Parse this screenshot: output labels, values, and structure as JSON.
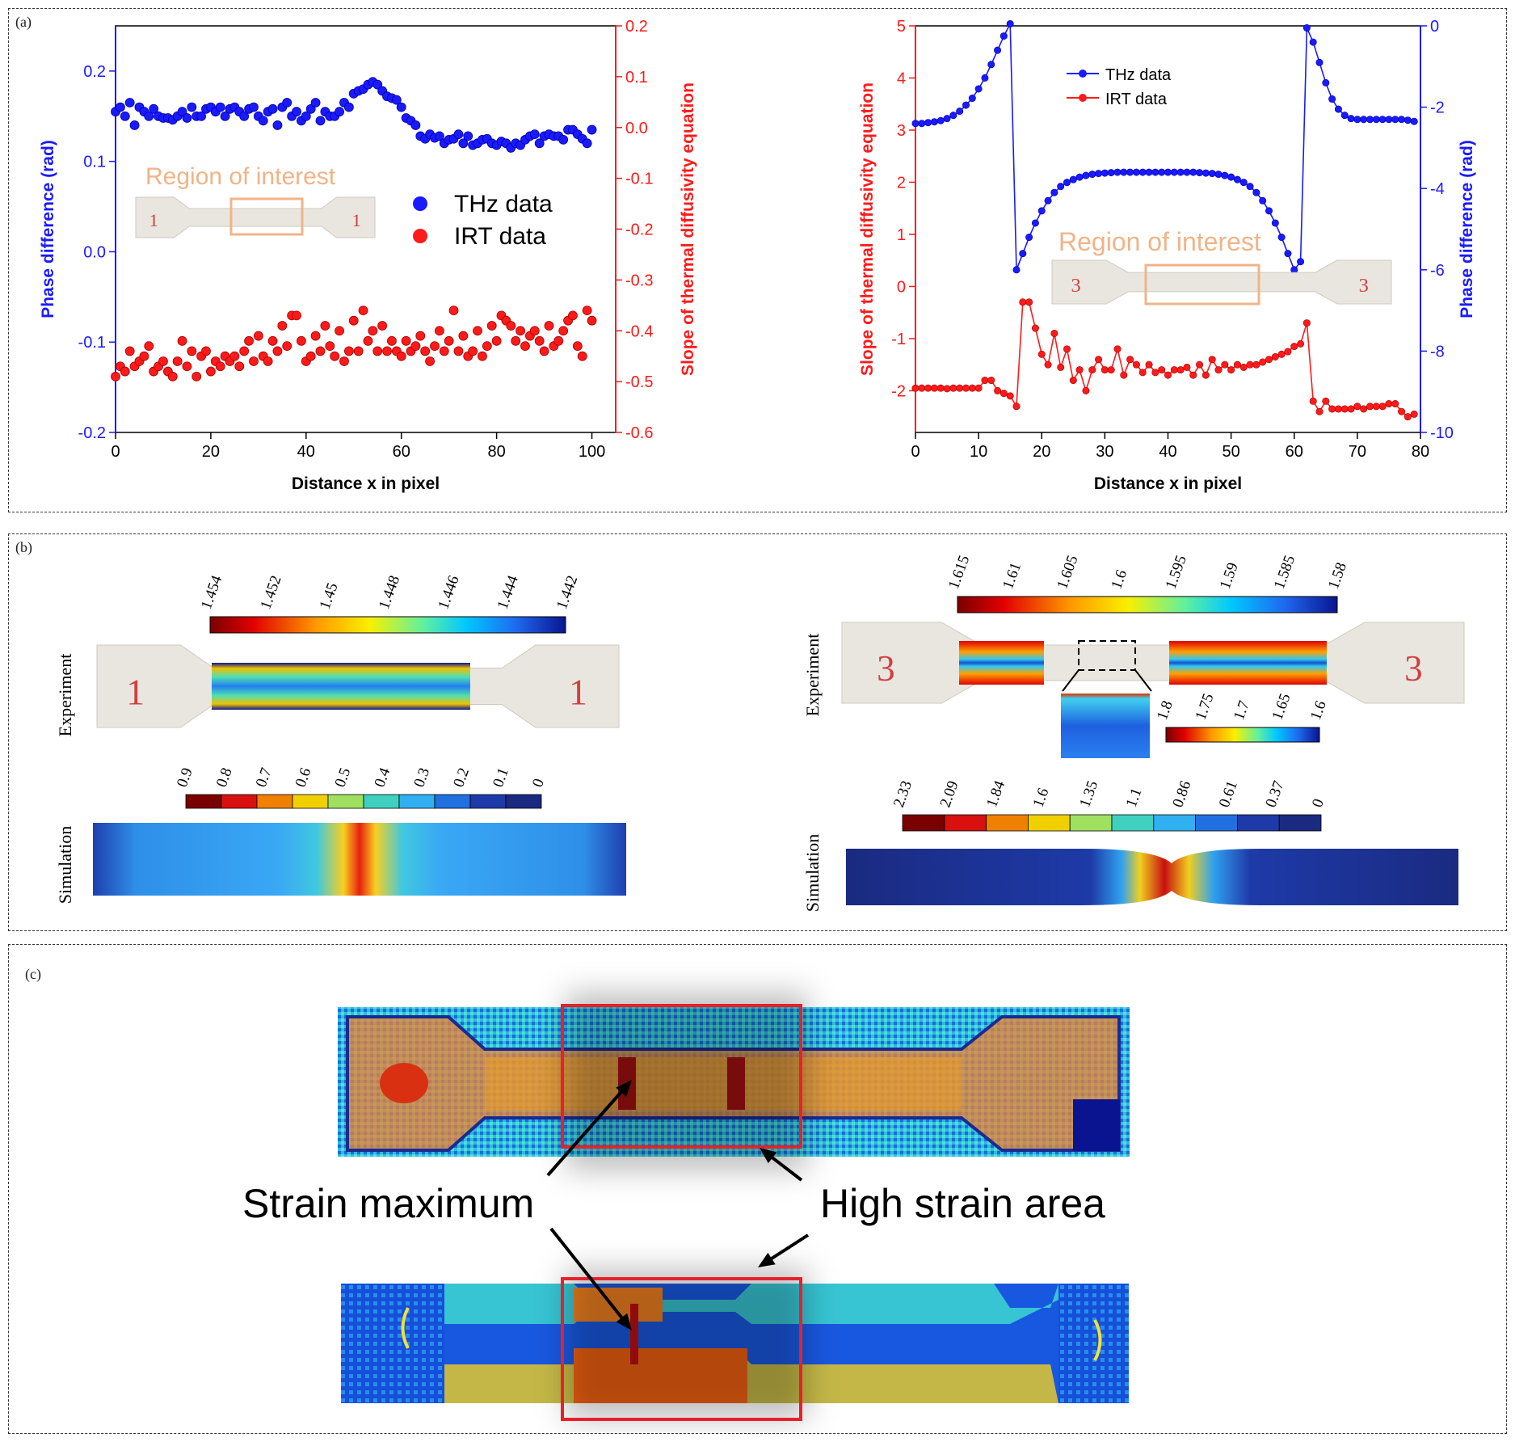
{
  "panel_labels": {
    "a": "(a)",
    "b": "(b)",
    "c": "(c)"
  },
  "colors": {
    "thz": "#1a1aff",
    "irt": "#ff1a1a",
    "roi": "#f0b488",
    "highlight": "#e8202a"
  },
  "chart_data": [
    {
      "type": "scatter",
      "xlabel": "Distance x in pixel",
      "ylabel_left": "Phase difference (rad)",
      "ylabel_right": "Slope of thermal diffusivity equation",
      "xlim": [
        0,
        105
      ],
      "ylim_left": [
        -0.2,
        0.25
      ],
      "ylim_right": [
        -0.6,
        0.2
      ],
      "x_ticks": [
        "0",
        "20",
        "40",
        "60",
        "80",
        "100"
      ],
      "yleft_ticks": [
        "-0.2",
        "-0.1",
        "0.0",
        "0.1",
        "0.2"
      ],
      "yright_ticks": [
        "-0.6",
        "-0.5",
        "-0.4",
        "-0.3",
        "-0.2",
        "-0.1",
        "0.0",
        "0.1",
        "0.2"
      ],
      "legend": [
        "THz data",
        "IRT data"
      ],
      "inset_label": "Region of interest",
      "series": [
        {
          "name": "THz data",
          "axis": "left",
          "values": [
            0.155,
            0.16,
            0.15,
            0.165,
            0.14,
            0.16,
            0.155,
            0.15,
            0.158,
            0.15,
            0.148,
            0.148,
            0.146,
            0.15,
            0.155,
            0.148,
            0.16,
            0.15,
            0.15,
            0.158,
            0.16,
            0.155,
            0.16,
            0.15,
            0.158,
            0.16,
            0.155,
            0.15,
            0.158,
            0.16,
            0.15,
            0.145,
            0.155,
            0.158,
            0.14,
            0.16,
            0.165,
            0.15,
            0.155,
            0.145,
            0.15,
            0.158,
            0.165,
            0.145,
            0.155,
            0.15,
            0.15,
            0.155,
            0.165,
            0.16,
            0.175,
            0.178,
            0.18,
            0.185,
            0.188,
            0.185,
            0.178,
            0.172,
            0.17,
            0.168,
            0.16,
            0.148,
            0.145,
            0.14,
            0.128,
            0.125,
            0.13,
            0.126,
            0.128,
            0.12,
            0.124,
            0.125,
            0.13,
            0.12,
            0.128,
            0.118,
            0.12,
            0.124,
            0.125,
            0.12,
            0.118,
            0.122,
            0.12,
            0.115,
            0.12,
            0.118,
            0.124,
            0.128,
            0.13,
            0.12,
            0.128,
            0.13,
            0.128,
            0.128,
            0.124,
            0.135,
            0.135,
            0.13,
            0.125,
            0.12,
            0.135
          ]
        },
        {
          "name": "IRT data",
          "axis": "right",
          "values": [
            -0.49,
            -0.47,
            -0.48,
            -0.44,
            -0.47,
            -0.46,
            -0.45,
            -0.43,
            -0.48,
            -0.47,
            -0.46,
            -0.48,
            -0.49,
            -0.46,
            -0.42,
            -0.47,
            -0.44,
            -0.49,
            -0.45,
            -0.44,
            -0.48,
            -0.46,
            -0.47,
            -0.45,
            -0.46,
            -0.45,
            -0.47,
            -0.44,
            -0.42,
            -0.46,
            -0.41,
            -0.45,
            -0.46,
            -0.42,
            -0.44,
            -0.39,
            -0.43,
            -0.37,
            -0.37,
            -0.42,
            -0.46,
            -0.45,
            -0.41,
            -0.44,
            -0.39,
            -0.43,
            -0.45,
            -0.4,
            -0.46,
            -0.44,
            -0.38,
            -0.44,
            -0.36,
            -0.42,
            -0.4,
            -0.44,
            -0.39,
            -0.44,
            -0.42,
            -0.44,
            -0.45,
            -0.42,
            -0.44,
            -0.43,
            -0.41,
            -0.44,
            -0.46,
            -0.43,
            -0.4,
            -0.44,
            -0.42,
            -0.36,
            -0.44,
            -0.41,
            -0.45,
            -0.44,
            -0.4,
            -0.45,
            -0.43,
            -0.39,
            -0.42,
            -0.37,
            -0.38,
            -0.39,
            -0.42,
            -0.4,
            -0.43,
            -0.41,
            -0.4,
            -0.42,
            -0.44,
            -0.39,
            -0.43,
            -0.42,
            -0.4,
            -0.38,
            -0.37,
            -0.43,
            -0.45,
            -0.36,
            -0.38
          ]
        }
      ]
    },
    {
      "type": "line",
      "xlabel": "Distance x in pixel",
      "ylabel_left": "Slope of thermal diffusivity equation",
      "ylabel_right": "Phase difference (rad)",
      "xlim": [
        0,
        80
      ],
      "ylim_left": [
        -2.8,
        5
      ],
      "ylim_right": [
        -10,
        0
      ],
      "x_ticks": [
        "0",
        "10",
        "20",
        "30",
        "40",
        "50",
        "60",
        "70",
        "80"
      ],
      "yleft_ticks": [
        "-2",
        "-1",
        "0",
        "1",
        "2",
        "3",
        "4",
        "5"
      ],
      "yright_ticks": [
        "-10",
        "-8",
        "-6",
        "-4",
        "-2",
        "0"
      ],
      "legend": [
        "THz data",
        "IRT data"
      ],
      "inset_label": "Region of interest",
      "series": [
        {
          "name": "THz data",
          "axis": "right",
          "values": [
            -2.4,
            -2.4,
            -2.38,
            -2.36,
            -2.33,
            -2.28,
            -2.2,
            -2.1,
            -1.95,
            -1.78,
            -1.55,
            -1.28,
            -0.95,
            -0.6,
            -0.25,
            0.05,
            -6.0,
            -5.6,
            -5.2,
            -4.85,
            -4.55,
            -4.3,
            -4.1,
            -3.95,
            -3.85,
            -3.78,
            -3.72,
            -3.68,
            -3.65,
            -3.63,
            -3.62,
            -3.61,
            -3.6,
            -3.6,
            -3.6,
            -3.6,
            -3.6,
            -3.6,
            -3.6,
            -3.6,
            -3.6,
            -3.6,
            -3.6,
            -3.6,
            -3.6,
            -3.61,
            -3.62,
            -3.63,
            -3.65,
            -3.68,
            -3.72,
            -3.78,
            -3.85,
            -3.95,
            -4.1,
            -4.3,
            -4.55,
            -4.85,
            -5.2,
            -5.6,
            -6.0,
            -5.8,
            -0.05,
            -0.4,
            -0.9,
            -1.4,
            -1.8,
            -2.05,
            -2.2,
            -2.28,
            -2.3,
            -2.3,
            -2.3,
            -2.3,
            -2.3,
            -2.3,
            -2.3,
            -2.3,
            -2.32,
            -2.35
          ]
        },
        {
          "name": "IRT data",
          "axis": "left",
          "values": [
            -1.95,
            -1.95,
            -1.95,
            -1.95,
            -1.95,
            -1.96,
            -1.95,
            -1.95,
            -1.95,
            -1.95,
            -1.95,
            -1.8,
            -1.8,
            -2.0,
            -2.05,
            -2.1,
            -2.3,
            -0.3,
            -0.3,
            -0.8,
            -1.3,
            -1.5,
            -0.9,
            -1.55,
            -1.2,
            -1.8,
            -1.6,
            -2.0,
            -1.6,
            -1.4,
            -1.6,
            -1.6,
            -1.2,
            -1.7,
            -1.4,
            -1.5,
            -1.65,
            -1.5,
            -1.65,
            -1.6,
            -1.7,
            -1.6,
            -1.6,
            -1.55,
            -1.7,
            -1.5,
            -1.7,
            -1.4,
            -1.6,
            -1.5,
            -1.6,
            -1.5,
            -1.55,
            -1.5,
            -1.5,
            -1.45,
            -1.4,
            -1.35,
            -1.3,
            -1.25,
            -1.15,
            -1.1,
            -0.7,
            -2.2,
            -2.4,
            -2.2,
            -2.35,
            -2.35,
            -2.35,
            -2.35,
            -2.3,
            -2.35,
            -2.3,
            -2.3,
            -2.3,
            -2.25,
            -2.25,
            -2.4,
            -2.5,
            -2.45
          ]
        }
      ]
    },
    {
      "type": "heatmap",
      "row_labels": [
        "Experiment",
        "Simulation"
      ],
      "experiment_colorbar": [
        "1.454",
        "1.452",
        "1.45",
        "1.448",
        "1.446",
        "1.444",
        "1.442"
      ],
      "simulation_colorbar": [
        "0.9",
        "0.8",
        "0.7",
        "0.6",
        "0.5",
        "0.4",
        "0.3",
        "0.2",
        "0.1",
        "0"
      ]
    },
    {
      "type": "heatmap",
      "row_labels": [
        "Experiment",
        "Simulation"
      ],
      "experiment_colorbar": [
        "1.615",
        "1.61",
        "1.605",
        "1.6",
        "1.595",
        "1.59",
        "1.585",
        "1.58"
      ],
      "inset_colorbar": [
        "1.8",
        "1.75",
        "1.7",
        "1.65",
        "1.6"
      ],
      "simulation_colorbar": [
        "2.33",
        "2.09",
        "1.84",
        "1.6",
        "1.35",
        "1.1",
        "0.86",
        "0.61",
        "0.37",
        "0"
      ]
    }
  ],
  "specimen_numbers": {
    "one": "1",
    "three": "3"
  },
  "panel_c": {
    "annotation_left": "Strain maximum",
    "annotation_right": "High strain area"
  }
}
